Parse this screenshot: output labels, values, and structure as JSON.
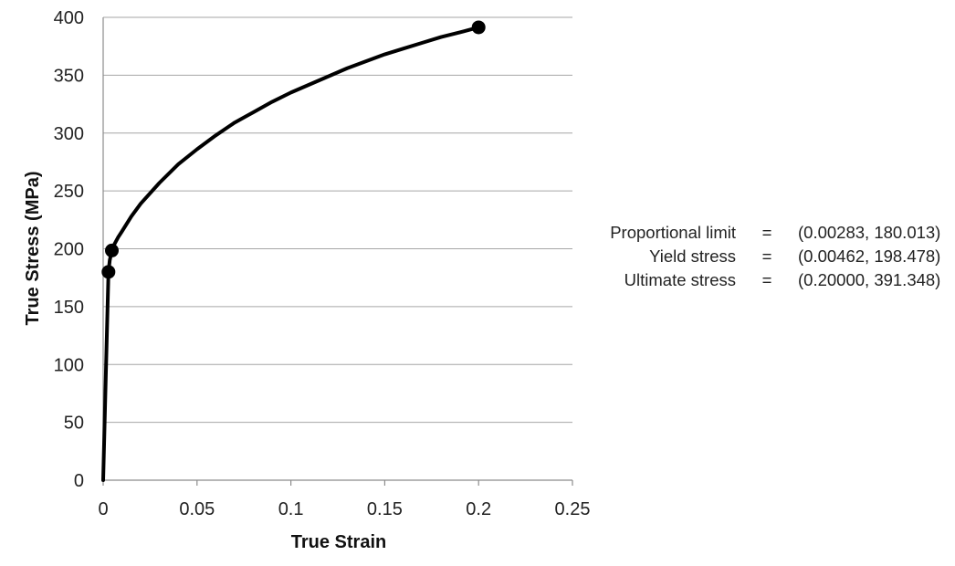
{
  "chart_data": {
    "type": "line",
    "title": "",
    "xlabel": "True Strain",
    "ylabel": "True Stress (MPa)",
    "xlim": [
      0,
      0.25
    ],
    "ylim": [
      0,
      400
    ],
    "x_ticks": [
      "0",
      "0.05",
      "0.1",
      "0.15",
      "0.2",
      "0.25"
    ],
    "y_ticks": [
      "0",
      "50",
      "100",
      "150",
      "200",
      "250",
      "300",
      "350",
      "400"
    ],
    "grid": "horizontal",
    "series": [
      {
        "color": "#000000",
        "x": [
          0,
          0.0005,
          0.001,
          0.0015,
          0.002,
          0.00283,
          0.0035,
          0.00462,
          0.006,
          0.008,
          0.01,
          0.015,
          0.02,
          0.03,
          0.04,
          0.05,
          0.06,
          0.07,
          0.08,
          0.09,
          0.1,
          0.11,
          0.12,
          0.13,
          0.14,
          0.15,
          0.16,
          0.17,
          0.18,
          0.19,
          0.2
        ],
        "y": [
          0,
          32,
          64,
          96,
          128,
          180.013,
          190,
          198.478,
          204,
          210,
          215,
          228,
          239,
          257,
          273,
          286,
          298,
          309,
          318,
          327,
          335,
          342,
          349,
          356,
          362,
          368,
          373,
          378,
          383,
          387,
          391.348
        ]
      }
    ],
    "points": [
      {
        "label": "Proportional limit",
        "x": 0.00283,
        "y": 180.013
      },
      {
        "label": "Yield stress",
        "x": 0.00462,
        "y": 198.478
      },
      {
        "label": "Ultimate stress",
        "x": 0.2,
        "y": 391.348
      }
    ],
    "annotations": [
      {
        "label": "Proportional limit",
        "eq": "=",
        "value": "(0.00283, 180.013)"
      },
      {
        "label": "Yield stress",
        "eq": "=",
        "value": "(0.00462, 198.478)"
      },
      {
        "label": "Ultimate stress",
        "eq": "=",
        "value": "(0.20000, 391.348)"
      }
    ]
  }
}
